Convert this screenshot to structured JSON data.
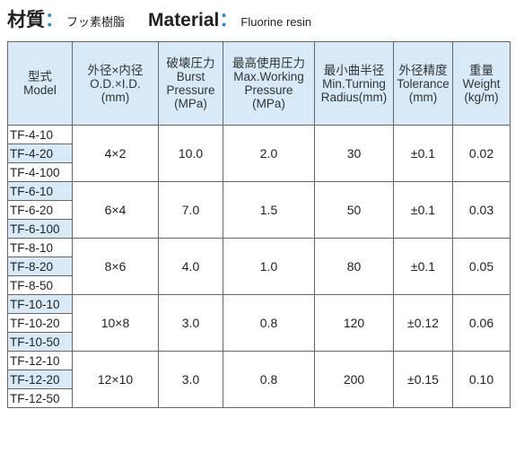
{
  "heading": {
    "jp_title": "材質",
    "colon1": "：",
    "jp_value": "フッ素樹脂",
    "en_title": "Material",
    "colon2": "：",
    "en_value": "Fluorine resin"
  },
  "columns": [
    {
      "lines": [
        "型式",
        "Model"
      ]
    },
    {
      "lines": [
        "外径×内径",
        "O.D.×I.D.",
        "(mm)"
      ]
    },
    {
      "lines": [
        "破壊圧力",
        "Burst",
        "Pressure",
        "(MPa)"
      ]
    },
    {
      "lines": [
        "最高使用圧力",
        "Max.Working",
        "Pressure",
        "(MPa)"
      ]
    },
    {
      "lines": [
        "最小曲半径",
        "Min.Turning",
        "Radius(mm)"
      ]
    },
    {
      "lines": [
        "外径精度",
        "Tolerance",
        "(mm)"
      ]
    },
    {
      "lines": [
        "重量",
        "Weight",
        "(kg/m)"
      ]
    }
  ],
  "groups": [
    {
      "models": [
        "TF-4-10",
        "TF-4-20",
        "TF-4-100"
      ],
      "size": "4×2",
      "burst": "10.0",
      "max_working": "2.0",
      "radius": "30",
      "tolerance": "±0.1",
      "weight": "0.02"
    },
    {
      "models": [
        "TF-6-10",
        "TF-6-20",
        "TF-6-100"
      ],
      "size": "6×4",
      "burst": "7.0",
      "max_working": "1.5",
      "radius": "50",
      "tolerance": "±0.1",
      "weight": "0.03"
    },
    {
      "models": [
        "TF-8-10",
        "TF-8-20",
        "TF-8-50"
      ],
      "size": "8×6",
      "burst": "4.0",
      "max_working": "1.0",
      "radius": "80",
      "tolerance": "±0.1",
      "weight": "0.05"
    },
    {
      "models": [
        "TF-10-10",
        "TF-10-20",
        "TF-10-50"
      ],
      "size": "10×8",
      "burst": "3.0",
      "max_working": "0.8",
      "radius": "120",
      "tolerance": "±0.12",
      "weight": "0.06"
    },
    {
      "models": [
        "TF-12-10",
        "TF-12-20",
        "TF-12-50"
      ],
      "size": "12×10",
      "burst": "3.0",
      "max_working": "0.8",
      "radius": "200",
      "tolerance": "±0.15",
      "weight": "0.10"
    }
  ]
}
